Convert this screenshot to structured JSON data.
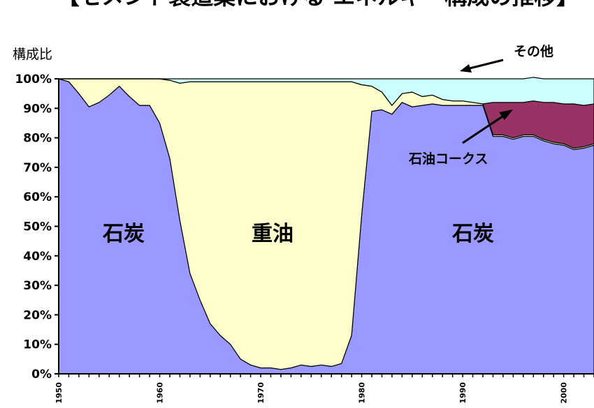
{
  "chart_data": {
    "type": "area",
    "title": "【セメント製造業における エネルギー構成の推移】",
    "ylabel": "構成比",
    "xlabel": "",
    "xlim": [
      1950,
      2003
    ],
    "ylim": [
      0,
      100
    ],
    "y_ticks": [
      "0%",
      "10%",
      "20%",
      "30%",
      "40%",
      "50%",
      "60%",
      "70%",
      "80%",
      "90%",
      "100%"
    ],
    "x_ticks": [
      "1950",
      "1960",
      "1970",
      "1980",
      "1990",
      "2000"
    ],
    "grid": false,
    "x": [
      1950,
      1951,
      1952,
      1953,
      1954,
      1955,
      1956,
      1957,
      1958,
      1959,
      1960,
      1961,
      1962,
      1963,
      1964,
      1965,
      1966,
      1967,
      1968,
      1969,
      1970,
      1971,
      1972,
      1973,
      1974,
      1975,
      1976,
      1977,
      1978,
      1979,
      1980,
      1981,
      1982,
      1983,
      1984,
      1985,
      1986,
      1987,
      1988,
      1989,
      1990,
      1991,
      1992,
      1993,
      1994,
      1995,
      1996,
      1997,
      1998,
      1999,
      2000,
      2001,
      2002,
      2003
    ],
    "series": [
      {
        "name": "石炭",
        "color": "#9999ff",
        "values": [
          100,
          99,
          95,
          90.5,
          92,
          94.5,
          97.5,
          94,
          91,
          91,
          85,
          73,
          52,
          34,
          25,
          17,
          13,
          10,
          5,
          3,
          2,
          2,
          1.5,
          2,
          3,
          2.5,
          3,
          2.5,
          3.5,
          13,
          54,
          89,
          89.5,
          88,
          92,
          90.5,
          91,
          91.5,
          91,
          91,
          91,
          91,
          91,
          80.5,
          80.5,
          79.5,
          80.5,
          80.5,
          79,
          78,
          77.5,
          76,
          76.5,
          77.5
        ]
      },
      {
        "name": "重油",
        "color": "#ffffcc",
        "values": [
          0,
          1,
          5,
          9.5,
          8,
          5.5,
          2.5,
          6,
          9,
          9,
          15,
          26.5,
          46.5,
          65,
          74,
          82,
          86,
          89,
          94,
          96,
          97,
          97,
          97.5,
          97,
          96,
          96.5,
          96,
          96.5,
          95.5,
          86,
          44,
          8.5,
          6,
          3,
          3,
          5,
          3,
          3,
          2,
          1.5,
          1.5,
          1,
          0.5,
          0.5,
          0.5,
          0.5,
          0.5,
          0.5,
          0.5,
          0.5,
          0.5,
          0.5,
          0.5,
          0.5
        ]
      },
      {
        "name": "石油コークス",
        "color": "#993366",
        "values": [
          0,
          0,
          0,
          0,
          0,
          0,
          0,
          0,
          0,
          0,
          0,
          0,
          0,
          0,
          0,
          0,
          0,
          0,
          0,
          0,
          0,
          0,
          0,
          0,
          0,
          0,
          0,
          0,
          0,
          0,
          0,
          0,
          0,
          0,
          0,
          0,
          0,
          0,
          0,
          0,
          0,
          0,
          0,
          11,
          11,
          12,
          11,
          11.5,
          12.5,
          13.5,
          13.5,
          15,
          14,
          13.5
        ]
      },
      {
        "name": "その他",
        "color": "#ccffff",
        "values": [
          0,
          0,
          0,
          0,
          0,
          0,
          0,
          0,
          0,
          0,
          0,
          0.5,
          1.5,
          1,
          1,
          1,
          1,
          1,
          1,
          1,
          1,
          1,
          1,
          1,
          1,
          1,
          1,
          1,
          1,
          1,
          2,
          2.5,
          4.5,
          9,
          5,
          4.5,
          6,
          5.5,
          7,
          7.5,
          7.5,
          8,
          8.5,
          8,
          8,
          8,
          8,
          8,
          8,
          8,
          8.5,
          8.5,
          9,
          8.5
        ]
      }
    ],
    "annotations": [
      "石炭",
      "重油",
      "石炭",
      "石油コークス",
      "その他"
    ]
  }
}
